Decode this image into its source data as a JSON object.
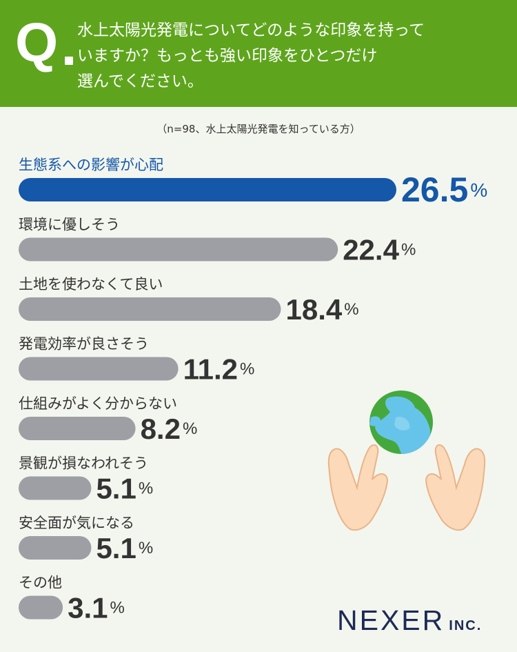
{
  "header": {
    "q_mark": "Q",
    "question": "水上太陽光発電についてどのような印象を持って\nいますか？もっとも強い印象をひとつだけ\n選んでください。"
  },
  "note": "（n=98、水上太陽光発電を知っている方）",
  "chart_data": {
    "type": "bar",
    "orientation": "horizontal",
    "unit": "%",
    "categories": [
      "生態系への影響が心配",
      "環境に優しそう",
      "土地を使わなくて良い",
      "発電効率が良さそう",
      "仕組みがよく分からない",
      "景観が損なわれそう",
      "安全面が気になる",
      "その他"
    ],
    "values": [
      26.5,
      22.4,
      18.4,
      11.2,
      8.2,
      5.1,
      5.1,
      3.1
    ],
    "highlight_index": 0,
    "colors": {
      "highlight": "#1557a8",
      "default": "#9e9fa4",
      "label_highlight": "#1557a8",
      "label_default": "#333333"
    }
  },
  "logo": {
    "name": "NEXER",
    "suffix": "INC."
  },
  "icon": "hands-holding-earth-icon"
}
